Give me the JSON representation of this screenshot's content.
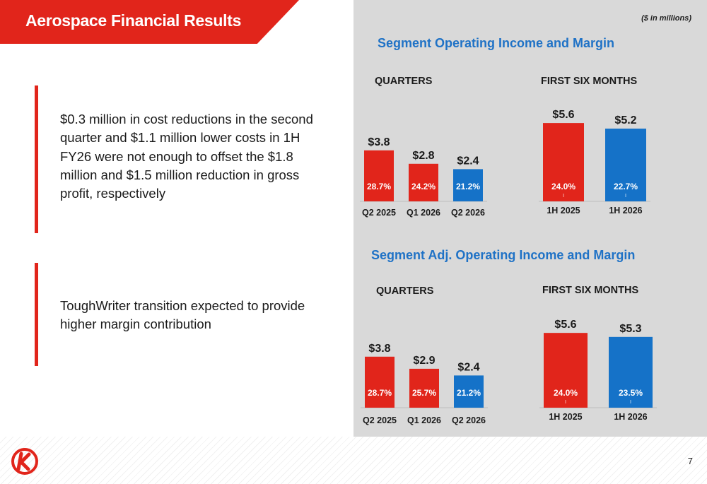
{
  "header": {
    "title": "Aerospace Financial Results",
    "units_note": "($ in millions)"
  },
  "bullets": [
    "$0.3 million in cost reductions in the second quarter and $1.1 million lower costs in 1H FY26 were not enough to offset the $1.8 million and $1.5 million reduction in gross profit, respectively",
    "ToughWriter transition expected to provide higher margin contribution"
  ],
  "sections": [
    {
      "title": "Segment Operating Income and Margin",
      "quarters_label": "QUARTERS",
      "six_months_label": "FIRST SIX MONTHS"
    },
    {
      "title": "Segment Adj. Operating Income and Margin",
      "quarters_label": "QUARTERS",
      "six_months_label": "FIRST SIX MONTHS"
    }
  ],
  "page_number": "7",
  "colors": {
    "red": "#e1251b",
    "blue": "#1572c8"
  },
  "chart_data": [
    {
      "type": "bar",
      "section": 0,
      "group": "quarters",
      "categories": [
        "Q2 2025",
        "Q1 2026",
        "Q2 2026"
      ],
      "values": [
        3.8,
        2.8,
        2.4
      ],
      "value_labels": [
        "$3.8",
        "$2.8",
        "$2.4"
      ],
      "margins": [
        "28.7%",
        "24.2%",
        "21.2%"
      ],
      "bar_colors": [
        "red",
        "red",
        "blue"
      ]
    },
    {
      "type": "bar",
      "section": 0,
      "group": "six_months",
      "categories": [
        "1H 2025",
        "1H 2026"
      ],
      "values": [
        5.6,
        5.2
      ],
      "value_labels": [
        "$5.6",
        "$5.2"
      ],
      "margins": [
        "24.0%",
        "22.7%"
      ],
      "bar_colors": [
        "red",
        "blue"
      ]
    },
    {
      "type": "bar",
      "section": 1,
      "group": "quarters",
      "categories": [
        "Q2 2025",
        "Q1 2026",
        "Q2 2026"
      ],
      "values": [
        3.8,
        2.9,
        2.4
      ],
      "value_labels": [
        "$3.8",
        "$2.9",
        "$2.4"
      ],
      "margins": [
        "28.7%",
        "25.7%",
        "21.2%"
      ],
      "bar_colors": [
        "red",
        "red",
        "blue"
      ]
    },
    {
      "type": "bar",
      "section": 1,
      "group": "six_months",
      "categories": [
        "1H 2025",
        "1H 2026"
      ],
      "values": [
        5.6,
        5.3
      ],
      "value_labels": [
        "$5.6",
        "$5.3"
      ],
      "margins": [
        "24.0%",
        "23.5%"
      ],
      "bar_colors": [
        "red",
        "blue"
      ]
    }
  ]
}
